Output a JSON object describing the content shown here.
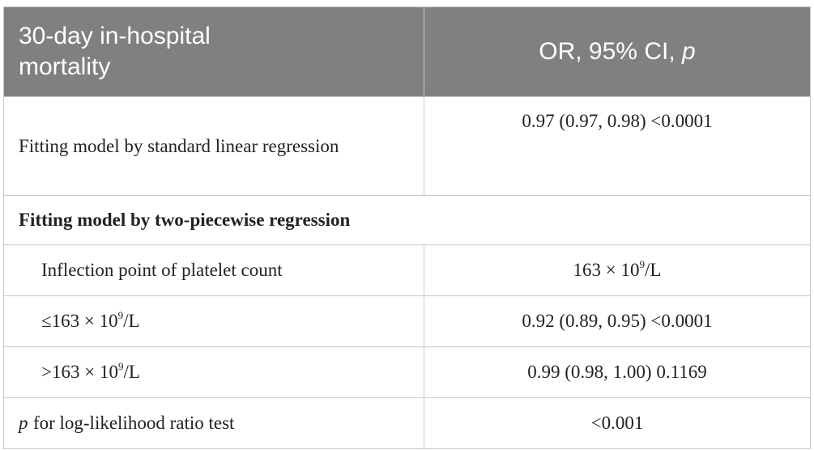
{
  "table": {
    "header": {
      "col1": "30-day in-hospital mortality",
      "col2": {
        "text": "OR, 95% CI,",
        "italic": "p"
      }
    },
    "rows": [
      {
        "label": "Fitting model by standard linear regression",
        "value": "0.97 (0.97, 0.98) <0.0001"
      },
      {
        "section": "Fitting model by two-piecewise regression"
      },
      {
        "label": "Inflection point of platelet count",
        "value": {
          "before": "163 × 10",
          "sup": "9",
          "after": "/L"
        }
      },
      {
        "label": {
          "before": "≤163 × 10",
          "sup": "9",
          "after": "/L"
        },
        "value": "0.92 (0.89, 0.95) <0.0001"
      },
      {
        "label": {
          "before": ">163 × 10",
          "sup": "9",
          "after": "/L"
        },
        "value": "0.99 (0.98, 1.00) 0.1169"
      },
      {
        "label": {
          "italic": "p",
          "text": "for log-likelihood ratio test"
        },
        "value": "<0.001"
      }
    ]
  }
}
